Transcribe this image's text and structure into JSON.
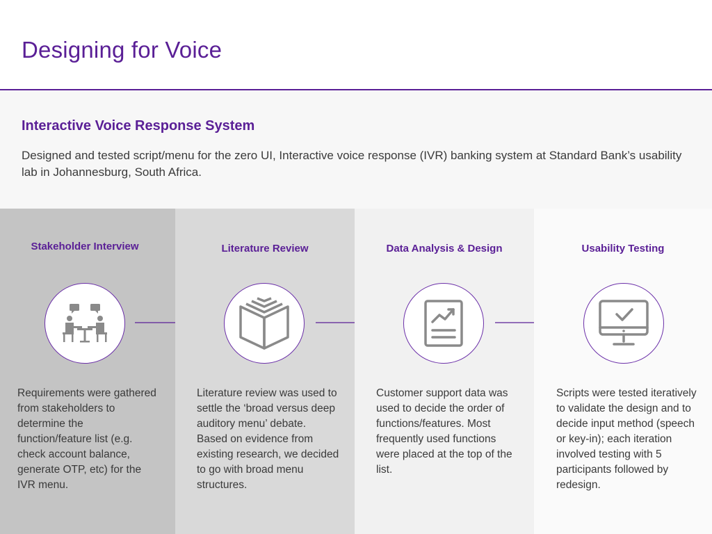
{
  "page": {
    "title": "Designing for Voice"
  },
  "intro": {
    "heading": "Interactive Voice Response System",
    "description": "Designed and tested script/menu for the zero UI, Interactive voice response (IVR) banking system at Standard Bank’s usability lab in Johannesburg, South Africa."
  },
  "colors": {
    "accent": "#5a1f96",
    "icon_gray": "#8a8a8a"
  },
  "steps": [
    {
      "title": "Stakeholder Interview",
      "icon": "meeting-icon",
      "description": "Requirements were gathered from stakeholders to determine the function/feature list (e.g. check account balance, generate OTP, etc) for the IVR menu."
    },
    {
      "title": "Literature Review",
      "icon": "book-icon",
      "description": "Literature review was used to settle the ‘broad versus deep auditory menu’ debate. Based on evidence from existing research, we decided to go with broad menu structures."
    },
    {
      "title": "Data Analysis & Design",
      "icon": "report-chart-icon",
      "description": "Customer support data was used to decide the order of functions/features. Most frequently used functions were placed at the top of the list."
    },
    {
      "title": "Usability Testing",
      "icon": "monitor-check-icon",
      "description": "Scripts were tested iteratively to validate the design and to decide input method (speech or key-in); each iteration involved testing with 5 participants followed by redesign."
    }
  ]
}
